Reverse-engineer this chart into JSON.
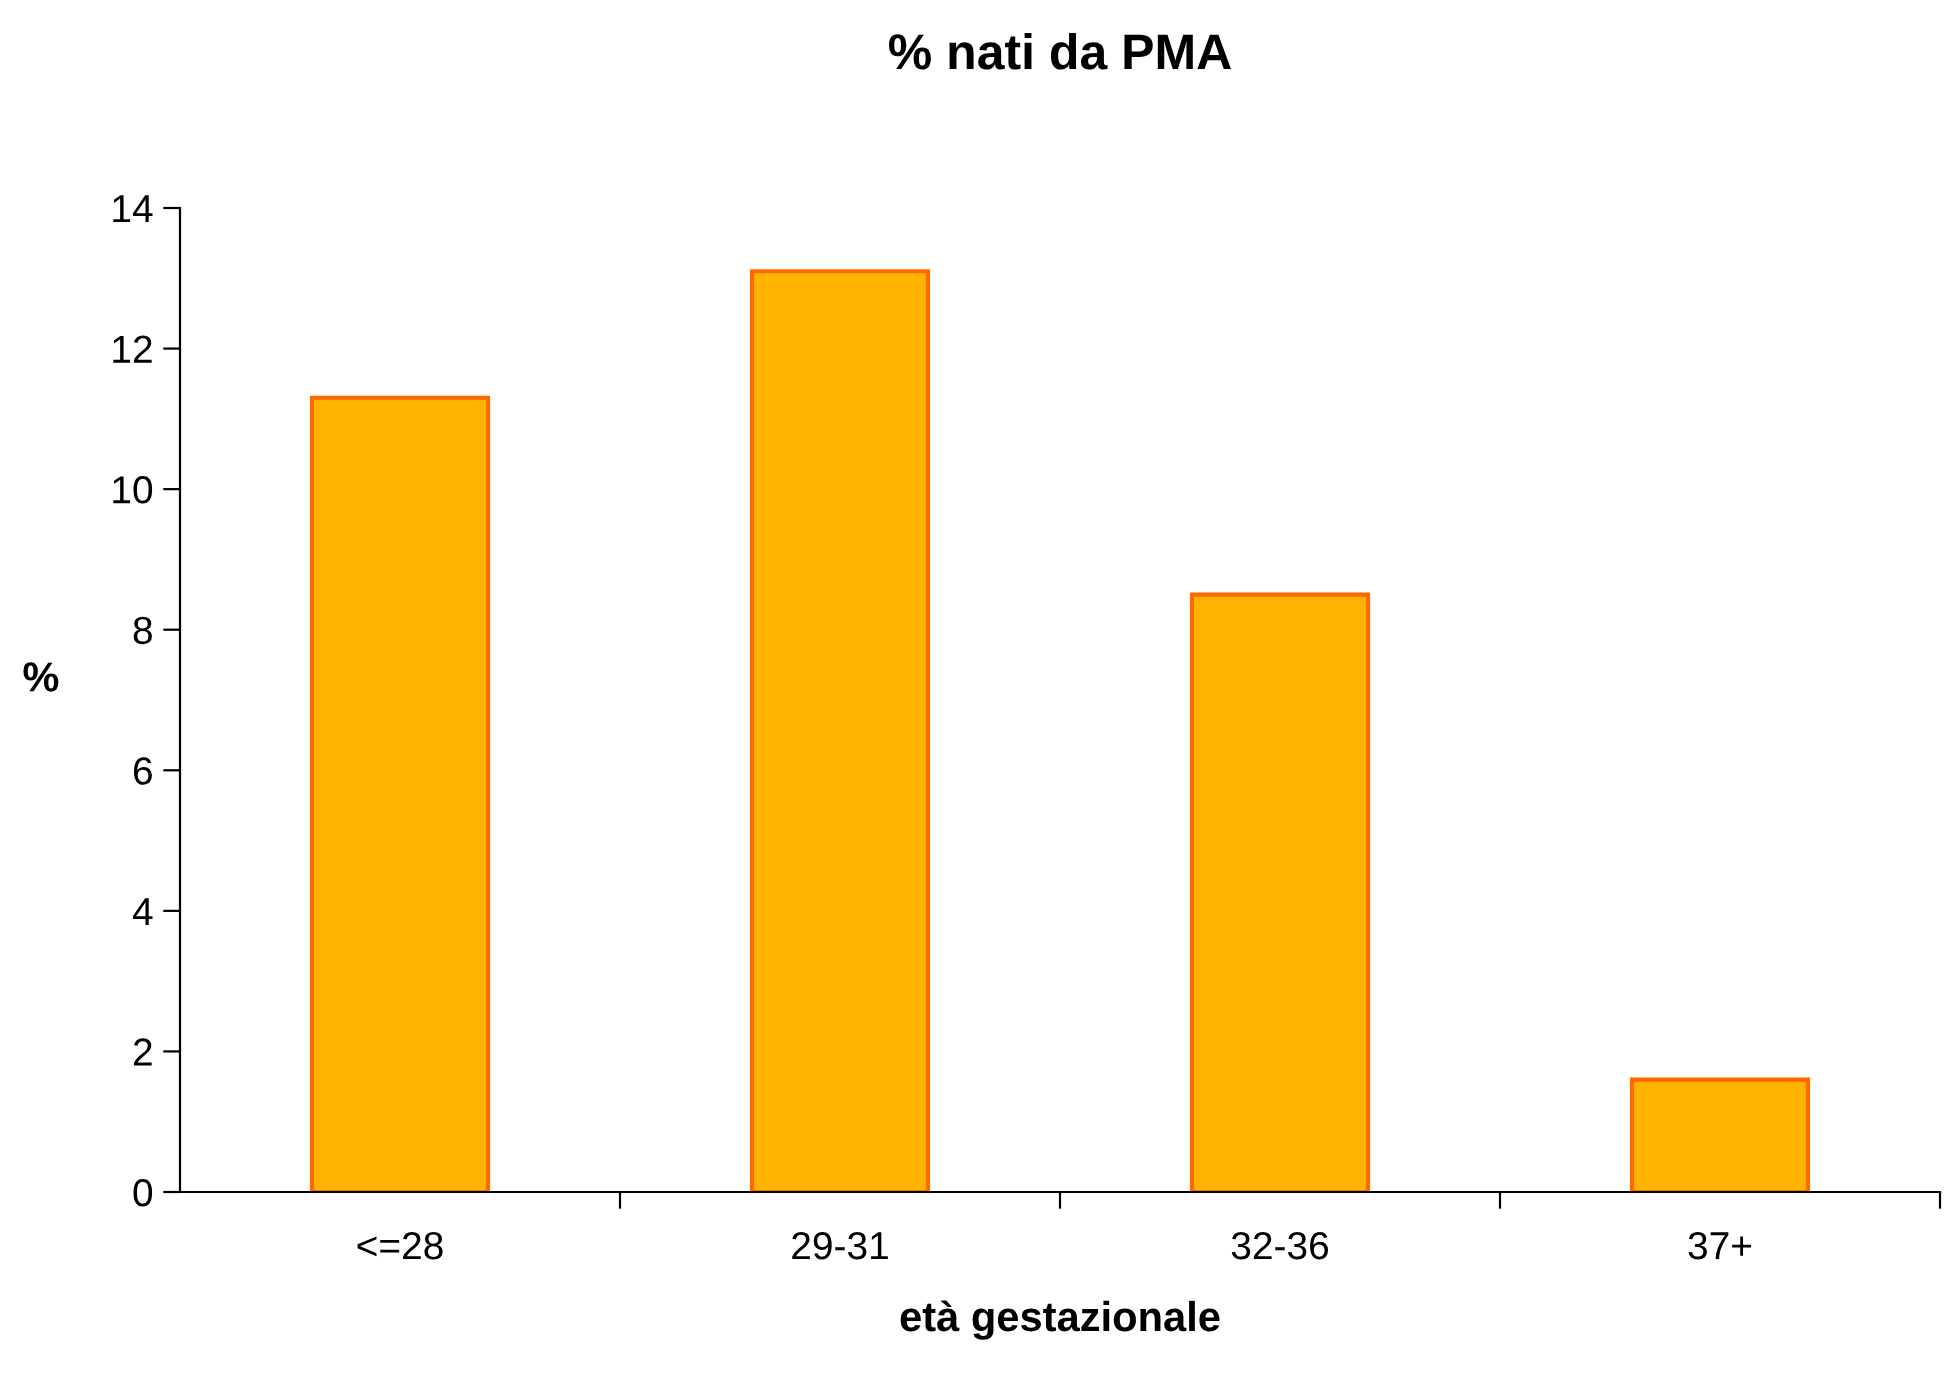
{
  "chart_data": {
    "type": "bar",
    "title": "% nati da PMA",
    "xlabel": "età gestazionale",
    "ylabel": "%",
    "categories": [
      "<=28",
      "29-31",
      "32-36",
      "37+"
    ],
    "values": [
      11.3,
      13.1,
      8.5,
      1.6
    ],
    "color": "#ffb300",
    "ylim": [
      0,
      14
    ],
    "yticks": [
      0,
      2,
      4,
      6,
      8,
      10,
      12,
      14
    ],
    "grid": false,
    "legend": false
  }
}
